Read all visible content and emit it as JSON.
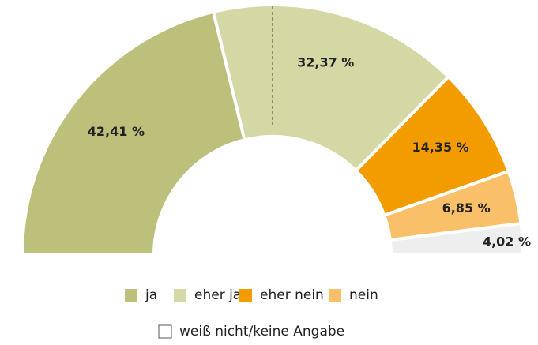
{
  "chart_data": {
    "type": "semi-donut",
    "categories": [
      "ja",
      "eher ja",
      "eher nein",
      "nein",
      "weiß nicht/keine Angabe"
    ],
    "values": [
      42.41,
      32.37,
      14.35,
      6.85,
      4.02
    ],
    "value_labels": [
      "42,41 %",
      "32,37 %",
      "14,35 %",
      "6,85 %",
      "4,02 %"
    ],
    "colors": [
      "#bcc07a",
      "#d3d8a4",
      "#f39c00",
      "#f9c069",
      "#eeeeee"
    ]
  }
}
